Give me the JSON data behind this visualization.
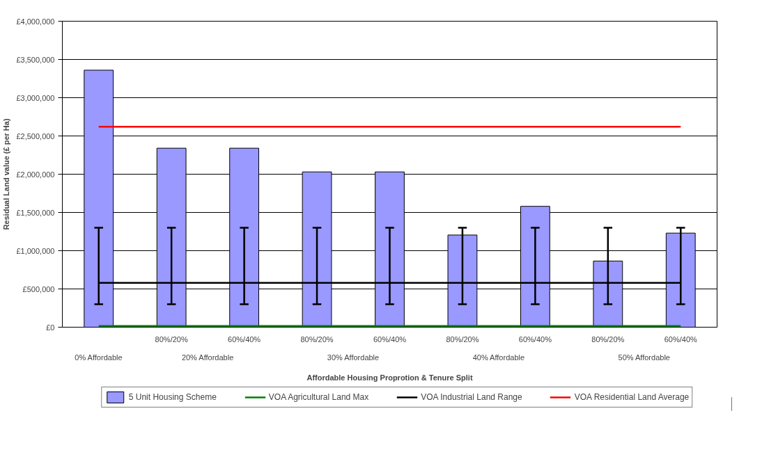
{
  "chart_data": {
    "type": "bar",
    "xlabel": "Affordable Housing Proprotion & Tenure Split",
    "ylabel": "Residual Land value (£ per Ha)",
    "categories": [
      null,
      "80%/20%",
      "60%/40%",
      "80%/20%",
      "60%/40%",
      "80%/20%",
      "60%/40%",
      "80%/20%",
      "60%/40%"
    ],
    "annotations": [
      "0% Affordable",
      "20% Affordable",
      "30% Affordable",
      "40% Affordable",
      "50% Affordable"
    ],
    "series": [
      {
        "name": "5 Unit Housing Scheme",
        "color": "#9999ff",
        "values": [
          3360000,
          2340000,
          2340000,
          2030000,
          2030000,
          1205000,
          1580000,
          865000,
          1230000
        ]
      },
      {
        "name": "VOA Agricultural Land Max",
        "type": "line",
        "color": "#008000",
        "values": [
          15000,
          15000,
          15000,
          15000,
          15000,
          15000,
          15000,
          15000,
          15000
        ]
      },
      {
        "name": "VOA Industrial Land Range",
        "type": "line",
        "color": "#000000",
        "values": [
          580000,
          580000,
          580000,
          580000,
          580000,
          580000,
          580000,
          580000,
          580000
        ],
        "errors": [
          [
            300000,
            1300000
          ],
          [
            300000,
            1300000
          ],
          [
            300000,
            1300000
          ],
          [
            300000,
            1300000
          ],
          [
            300000,
            1300000
          ],
          [
            300000,
            1300000
          ],
          [
            300000,
            1300000
          ],
          [
            300000,
            1300000
          ],
          [
            300000,
            1300000
          ]
        ]
      },
      {
        "name": "VOA Residential Land Average",
        "type": "line",
        "color": "#ff0000",
        "values": [
          2620000,
          2620000,
          2620000,
          2620000,
          2620000,
          2620000,
          2620000,
          2620000,
          2620000
        ]
      }
    ],
    "ylim": [
      0,
      4000000
    ],
    "yticks": [
      {
        "value": 0,
        "label": "£0"
      },
      {
        "value": 500000,
        "label": "£500,000"
      },
      {
        "value": 1000000,
        "label": "£1,000,000"
      },
      {
        "value": 1500000,
        "label": "£1,500,000"
      },
      {
        "value": 2000000,
        "label": "£2,000,000"
      },
      {
        "value": 2500000,
        "label": "£2,500,000"
      },
      {
        "value": 3000000,
        "label": "£3,000,000"
      },
      {
        "value": 3500000,
        "label": "£3,500,000"
      },
      {
        "value": 4000000,
        "label": "£4,000,000"
      }
    ],
    "grid": "y",
    "legend": "bottom"
  }
}
